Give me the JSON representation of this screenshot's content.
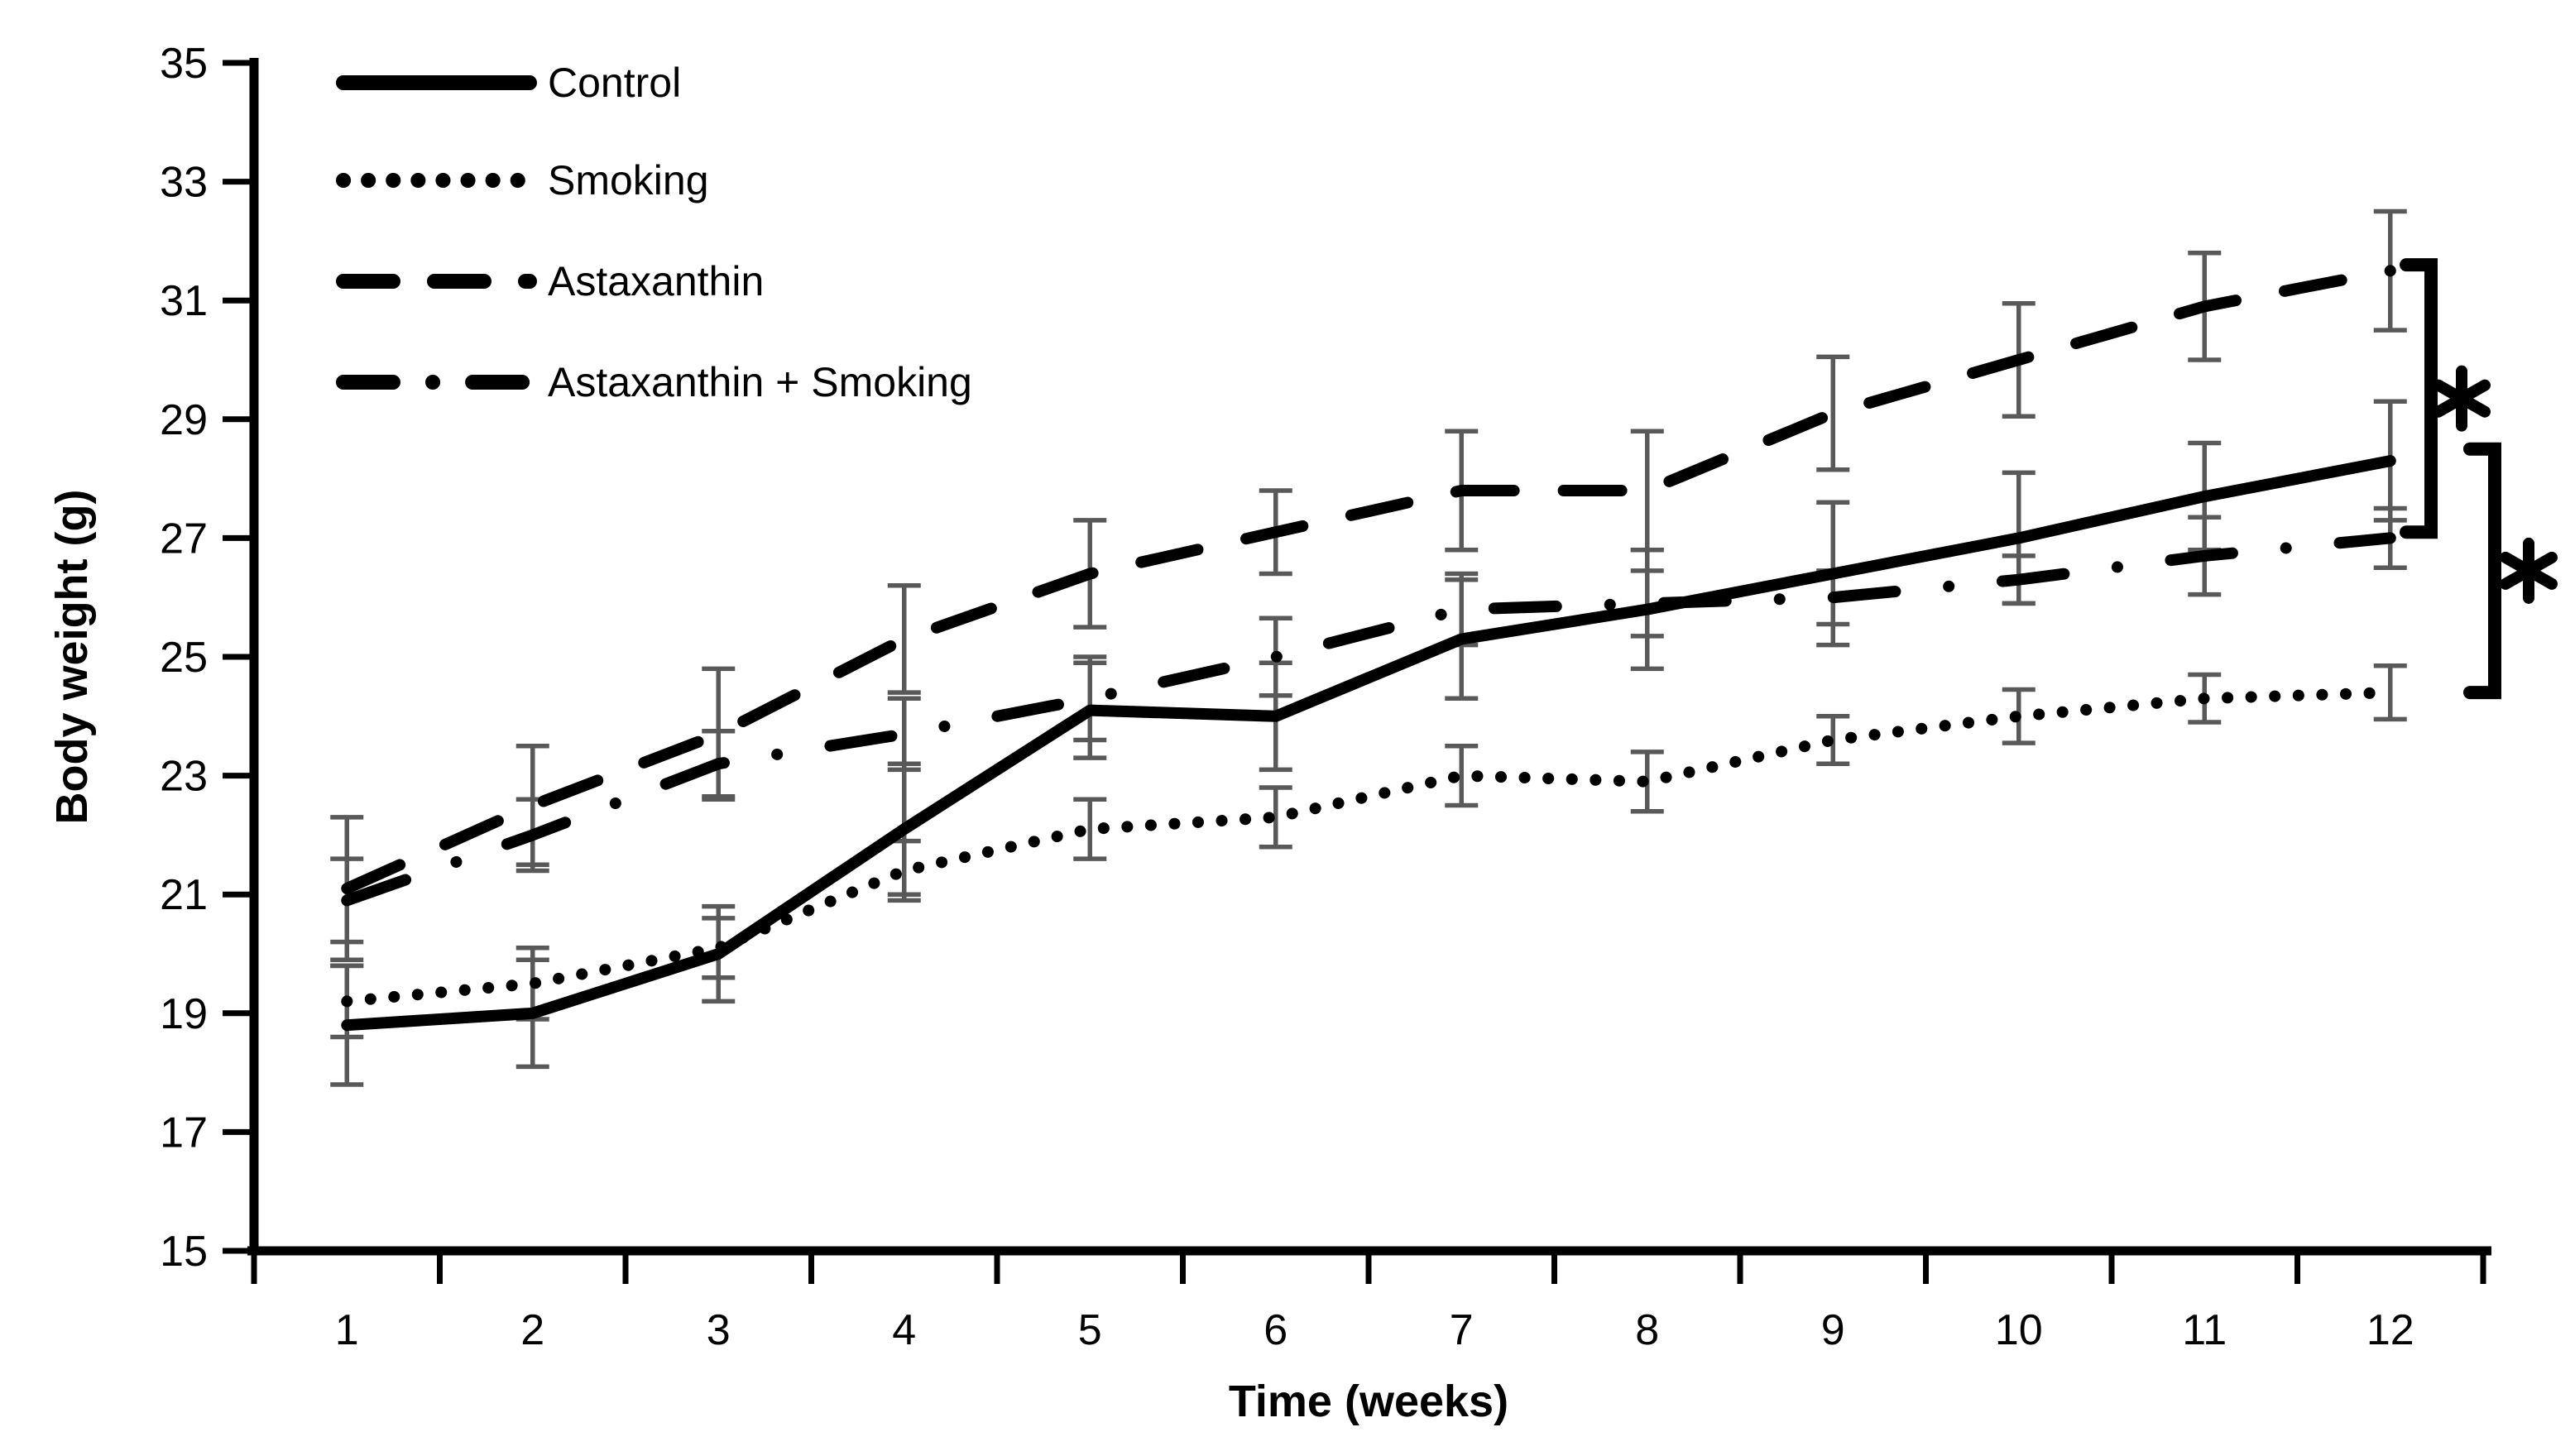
{
  "figure": {
    "background": "#ffffff",
    "line_color": "#000000",
    "error_bar_color": "#595959",
    "significance_symbol": "*"
  },
  "chart_data": {
    "type": "line",
    "title": "",
    "xlabel": "Time (weeks)",
    "ylabel": "Body weight (g)",
    "x": [
      1,
      2,
      3,
      4,
      5,
      6,
      7,
      8,
      9,
      10,
      11,
      12
    ],
    "xtick_labels": [
      "1",
      "2",
      "3",
      "4",
      "5",
      "6",
      "7",
      "8",
      "9",
      "10",
      "11",
      "12"
    ],
    "yticks": [
      15,
      17,
      19,
      21,
      23,
      25,
      27,
      29,
      31,
      33,
      35
    ],
    "ylim": [
      15,
      35
    ],
    "grid": false,
    "legend_position": "top-left-inside",
    "error_bars": true,
    "series": [
      {
        "name": "Control",
        "style": "solid",
        "values": [
          18.8,
          19.0,
          20.0,
          22.1,
          24.1,
          24.0,
          25.3,
          25.8,
          26.4,
          27.0,
          27.7,
          28.3
        ],
        "error": [
          1.0,
          0.9,
          0.8,
          1.1,
          0.8,
          0.9,
          1.0,
          1.0,
          1.2,
          1.1,
          0.9,
          1.0
        ]
      },
      {
        "name": "Smoking",
        "style": "dotted",
        "values": [
          19.2,
          19.5,
          20.1,
          21.4,
          22.1,
          22.3,
          23.0,
          22.9,
          23.6,
          24.0,
          24.3,
          24.4
        ],
        "error": [
          0.6,
          0.6,
          0.5,
          0.5,
          0.5,
          0.5,
          0.5,
          0.5,
          0.4,
          0.45,
          0.4,
          0.45
        ]
      },
      {
        "name": "Astaxanthin",
        "style": "dashed",
        "values": [
          21.1,
          22.5,
          23.7,
          25.3,
          26.4,
          27.1,
          27.8,
          27.8,
          29.1,
          30.0,
          30.9,
          31.5
        ],
        "error": [
          1.2,
          1.0,
          1.1,
          0.9,
          0.9,
          0.7,
          1.0,
          1.0,
          0.95,
          0.95,
          0.9,
          1.0
        ]
      },
      {
        "name": "Astaxanthin + Smoking",
        "style": "dash-dot",
        "values": [
          20.9,
          22.0,
          23.2,
          23.7,
          24.3,
          25.0,
          25.8,
          25.9,
          26.0,
          26.3,
          26.7,
          27.0
        ],
        "error": [
          0.7,
          0.6,
          0.55,
          0.6,
          0.7,
          0.65,
          0.6,
          0.55,
          0.45,
          0.4,
          0.65,
          0.5
        ]
      }
    ],
    "annotations": {
      "significance_brackets": [
        {
          "at_week": 12,
          "top_value": 31.6,
          "bottom_value": 27.1,
          "label": "*",
          "compares": [
            "Astaxanthin",
            "Astaxanthin + Smoking"
          ]
        },
        {
          "at_week": 12,
          "top_value": 28.5,
          "bottom_value": 24.4,
          "label": "*",
          "compares": [
            "Control",
            "Smoking"
          ]
        }
      ]
    }
  }
}
